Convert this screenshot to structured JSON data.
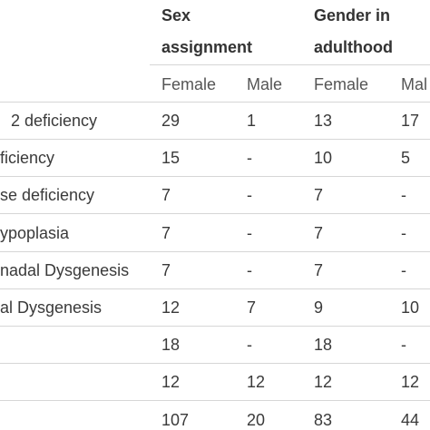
{
  "table": {
    "group_headers": [
      "Sex assignment",
      "Gender in adulthood"
    ],
    "sub_headers": [
      "Female",
      "Male",
      "Female",
      "Mal"
    ],
    "rows": [
      {
        "label": "2 deficiency",
        "cells": [
          29,
          1,
          13,
          17
        ]
      },
      {
        "label": "ficiency",
        "cells": [
          15,
          "-",
          10,
          5
        ]
      },
      {
        "label": "se deficiency",
        "cells": [
          7,
          "-",
          7,
          "-"
        ]
      },
      {
        "label": "ypoplasia",
        "cells": [
          7,
          "-",
          7,
          "-"
        ]
      },
      {
        "label": "nadal Dysgenesis",
        "cells": [
          7,
          "-",
          7,
          "-"
        ]
      },
      {
        "label": "al Dysgenesis",
        "cells": [
          12,
          7,
          9,
          10
        ]
      },
      {
        "cells": [
          18,
          "-",
          18,
          "-"
        ]
      },
      {
        "cells": [
          12,
          12,
          12,
          12
        ]
      },
      {
        "cells": [
          107,
          20,
          83,
          44
        ]
      }
    ]
  }
}
